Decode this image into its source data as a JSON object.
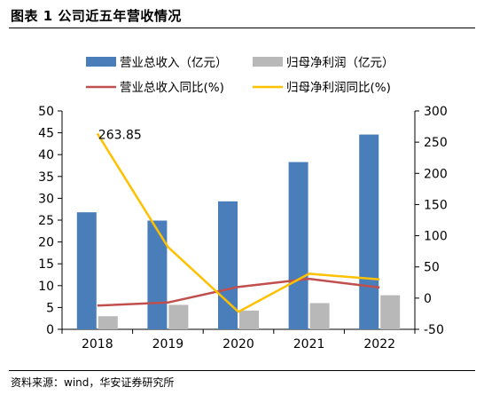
{
  "figure": {
    "title": "图表 1 公司近五年营收情况",
    "source": "资料来源：wind，华安证券研究所"
  },
  "chart_data": {
    "type": "bar",
    "categories": [
      "2018",
      "2019",
      "2020",
      "2021",
      "2022"
    ],
    "bar_series": [
      {
        "name": "营业总收入（亿元）",
        "values": [
          26.8,
          24.9,
          29.3,
          38.3,
          44.6
        ],
        "color": "#4a7ebb",
        "axis": "left"
      },
      {
        "name": "归母净利润（亿元）",
        "values": [
          3.0,
          5.6,
          4.3,
          6.0,
          7.8
        ],
        "color": "#b8b8b8",
        "axis": "left"
      }
    ],
    "line_series": [
      {
        "name": "营业总收入同比(%)",
        "values": [
          -12,
          -7,
          18,
          31,
          17
        ],
        "color": "#c0504d",
        "axis": "right"
      },
      {
        "name": "归母净利润同比(%)",
        "values": [
          263.85,
          82,
          -22,
          39,
          30
        ],
        "color": "#ffc000",
        "axis": "right"
      }
    ],
    "left_axis": {
      "min": 0,
      "max": 50,
      "ticks": [
        "0",
        "5",
        "10",
        "15",
        "20",
        "25",
        "30",
        "35",
        "40",
        "45",
        "50"
      ]
    },
    "right_axis": {
      "min": -50,
      "max": 300,
      "ticks": [
        "-50",
        "0",
        "50",
        "100",
        "150",
        "200",
        "250",
        "300"
      ]
    },
    "annotations": [
      {
        "series": 1,
        "index": 0,
        "text": "263.85"
      }
    ],
    "legend_position": "top",
    "grid": false
  }
}
